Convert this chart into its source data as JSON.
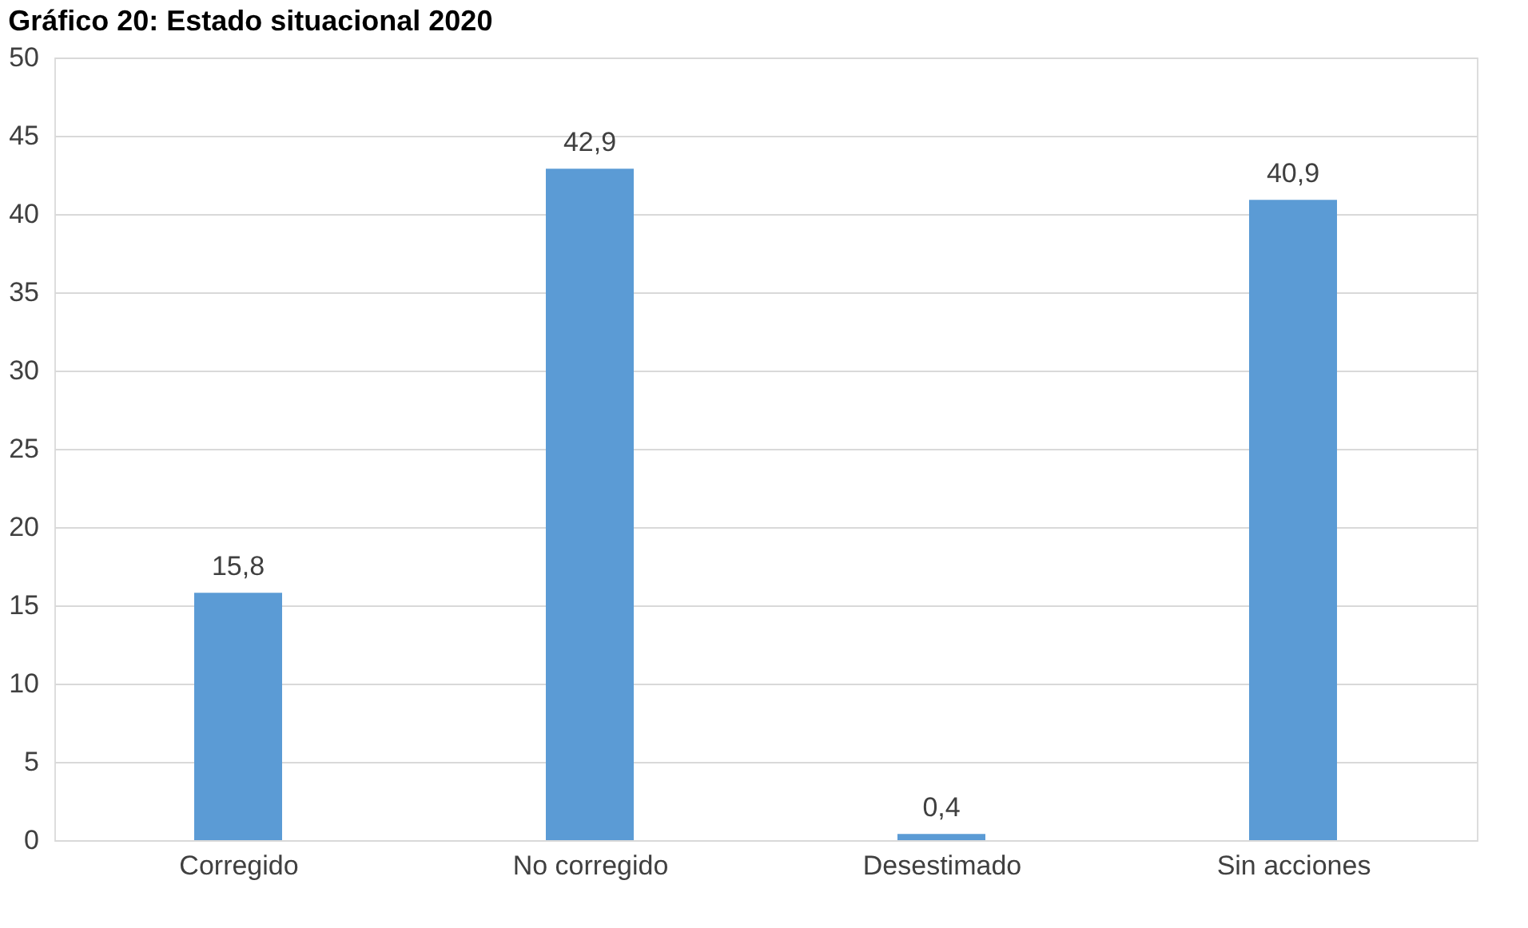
{
  "chart_data": {
    "type": "bar",
    "title": "Gráfico 20: Estado situacional 2020",
    "categories": [
      "Corregido",
      "No corregido",
      "Desestimado",
      "Sin acciones"
    ],
    "values": [
      15.8,
      42.9,
      0.4,
      40.9
    ],
    "color": "#5b9bd5",
    "value_labels": [
      "15,8",
      "42,9",
      "0,4",
      "40,9"
    ],
    "ylim": [
      0,
      50
    ],
    "yticks": [
      0,
      5,
      10,
      15,
      20,
      25,
      30,
      35,
      40,
      45,
      50
    ],
    "grid": "y"
  }
}
